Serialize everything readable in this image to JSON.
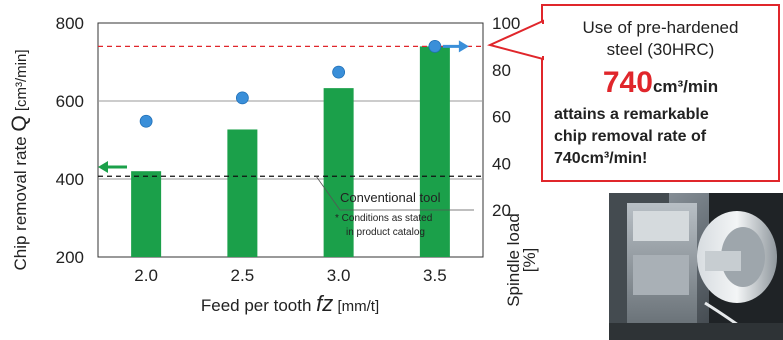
{
  "chart_data": {
    "type": "bar",
    "categories": [
      "2.0",
      "2.5",
      "3.0",
      "3.5"
    ],
    "series": [
      {
        "values": [
          420,
          527,
          633,
          740
        ],
        "axis": "left",
        "color": "#1ba04a"
      },
      {
        "values": [
          58,
          68,
          79,
          90
        ],
        "axis": "right",
        "marker": "circle",
        "color": "#3a8fd9"
      }
    ],
    "xlabel_prefix": "Feed per tooth",
    "xlabel_symbol": "fz",
    "xlabel_unit": "[mm/t]",
    "ylabel_text": "Chip removal rate",
    "ylabel_symbol": "Q",
    "ylabel_unit": "[cm³/min]",
    "ylim": [
      200,
      800
    ],
    "yticks": [
      "200",
      "400",
      "600",
      "800"
    ],
    "y2label_line1": "Spindle load",
    "y2label_line2": "[%]",
    "y2lim": [
      0,
      100
    ],
    "y2ticks": [
      "20",
      "40",
      "60",
      "80",
      "100"
    ],
    "ref_lines": [
      {
        "value": 740,
        "style": "dashed",
        "color": "#e0262b"
      },
      {
        "value": 407,
        "style": "dashed",
        "color": "#111111"
      }
    ],
    "gridlines": [
      400,
      600
    ],
    "annotation_title": "Conventional tool",
    "annotation_note_line1": "* Conditions as stated",
    "annotation_note_line2": "in product catalog"
  },
  "callout": {
    "line1": "Use of pre-hardened",
    "line2": "steel (30HRC)",
    "big_value": "740",
    "big_unit": "cm³/min",
    "line3": "attains a remarkable",
    "line4": "chip removal rate of",
    "line5": "740cm³/min!"
  },
  "colors": {
    "accent_red": "#e0262b",
    "bar_green": "#1ba04a",
    "marker_blue": "#3a8fd9"
  }
}
